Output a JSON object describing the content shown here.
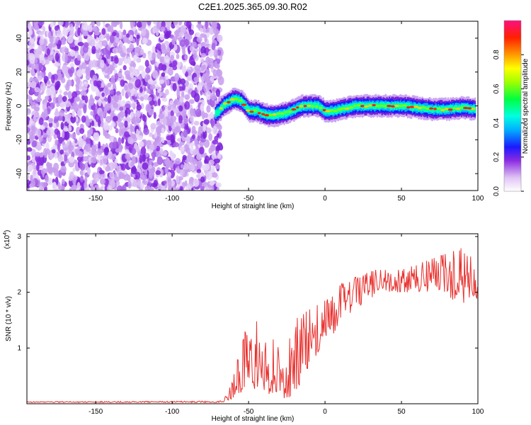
{
  "title": "C2E1.2025.365.09.30.R02",
  "colors": {
    "snr_line": "#e8322f",
    "frame": "#000000",
    "background": "#ffffff"
  },
  "colorbar": {
    "label": "Normalized spectral amplitude",
    "ticks": [
      "0.0",
      "0.2",
      "0.4",
      "0.6",
      "0.8"
    ],
    "tick_values": [
      0,
      0.2,
      0.4,
      0.6,
      0.8
    ],
    "range": [
      0,
      1
    ]
  },
  "chart_data": [
    {
      "type": "heatmap",
      "xlabel": "Height of straight line (km)",
      "ylabel": "Frequency (Hz)",
      "xlim": [
        -195,
        100
      ],
      "ylim": [
        -50,
        50
      ],
      "x_ticks": [
        "-150",
        "-100",
        "-50",
        "0",
        "50",
        "100"
      ],
      "x_tick_values": [
        -150,
        -100,
        -50,
        0,
        50,
        100
      ],
      "y_ticks": [
        "-40",
        "-20",
        "0",
        "20",
        "40"
      ],
      "y_tick_values": [
        -40,
        -20,
        0,
        20,
        40
      ],
      "noise_region_x": [
        -195,
        -68
      ],
      "signal_trace": {
        "x": [
          -72,
          -66,
          -60,
          -55,
          -50,
          -45,
          -40,
          -35,
          -30,
          -25,
          -20,
          -15,
          -10,
          -5,
          0,
          5,
          10,
          20,
          30,
          40,
          50,
          60,
          70,
          80,
          90,
          98
        ],
        "y": [
          -5,
          1,
          4,
          3,
          -3,
          -3,
          -5,
          -6,
          -5,
          -4,
          -2,
          0,
          0,
          0,
          -3,
          -3,
          -2,
          0,
          0,
          0,
          0,
          -1,
          -2,
          -2,
          -1,
          -2
        ]
      }
    },
    {
      "type": "line",
      "xlabel": "Height of straight line (km)",
      "ylabel": "SNR (10 * v/v)",
      "scale_label": "(x10",
      "scale_exp": "4",
      "scale_close": ")",
      "xlim": [
        -195,
        100
      ],
      "ylim": [
        0,
        3.05
      ],
      "x_ticks": [
        "-150",
        "-100",
        "-50",
        "0",
        "50",
        "100"
      ],
      "x_tick_values": [
        -150,
        -100,
        -50,
        0,
        50,
        100
      ],
      "y_ticks": [
        "1",
        "2",
        "3"
      ],
      "y_tick_values": [
        1,
        2,
        3
      ],
      "series": [
        {
          "envelope_x": [
            -195,
            -70,
            -65,
            -60,
            -55,
            -50,
            -45,
            -40,
            -35,
            -30,
            -25,
            -20,
            -15,
            -10,
            -5,
            0,
            5,
            10,
            15,
            20,
            25,
            30,
            40,
            50,
            60,
            70,
            80,
            90,
            100
          ],
          "envelope_low": [
            0.02,
            0.02,
            0.04,
            0.1,
            0.2,
            0.3,
            0.25,
            0.2,
            0.15,
            0.1,
            0.1,
            0.15,
            0.3,
            0.7,
            0.9,
            1.2,
            1.2,
            1.4,
            1.6,
            1.7,
            1.8,
            1.9,
            2.0,
            2.0,
            2.0,
            2.0,
            1.9,
            1.8,
            1.9
          ],
          "envelope_high": [
            0.04,
            0.05,
            0.15,
            0.5,
            1.1,
            1.6,
            1.5,
            1.3,
            1.2,
            1.0,
            1.2,
            1.5,
            1.7,
            1.8,
            1.9,
            2.0,
            2.1,
            2.2,
            2.2,
            2.3,
            2.3,
            2.4,
            2.4,
            2.4,
            2.5,
            2.6,
            2.7,
            2.8,
            2.5
          ]
        }
      ]
    }
  ]
}
